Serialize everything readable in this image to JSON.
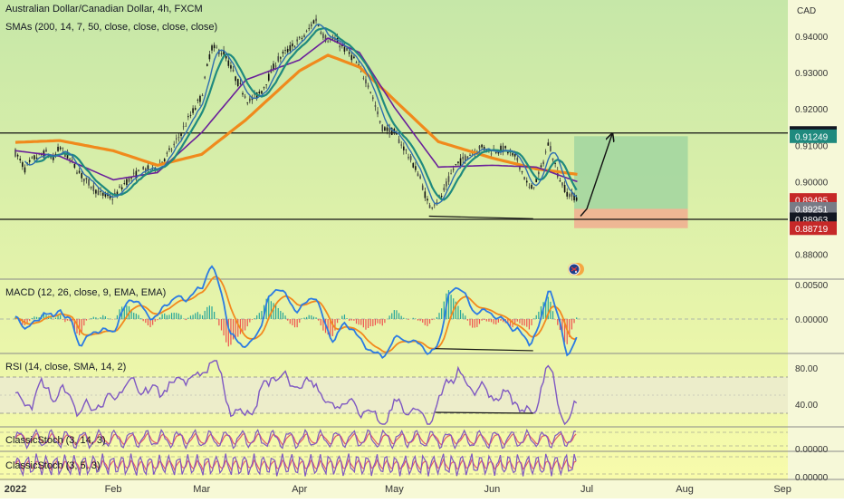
{
  "header": {
    "symbol": "Australian Dollar/Canadian Dollar, 4h, FXCM",
    "sma_label": "SMAs (200, 14, 7, 50, close, close, close, close)",
    "currency": "CAD"
  },
  "colors": {
    "bg_top": "#c6e7a8",
    "bg_bottom": "#fafcab",
    "sma200": "#f08a1c",
    "sma50": "#6a1f9a",
    "sma14": "#1f8a7e",
    "sma7": "#2f6fb0",
    "candle": "#222222",
    "macd_line": "#2b7be3",
    "macd_signal": "#f2891e",
    "hist_pos": "#26a69a",
    "hist_neg": "#ef5350",
    "rsi": "#7e57c2",
    "stoch_k": "#7e57c2",
    "stoch_d": "#e05a6b",
    "price_tag_black": "#131722",
    "price_tag_teal": "#1f8a7e",
    "price_tag_red": "#c62828",
    "price_tag_gray": "#787b86",
    "target_zone": "#9ad19f",
    "stop_zone": "#f2a98f"
  },
  "chart_data": [
    {
      "type": "line",
      "title": "Australian Dollar/Canadian Dollar, 4h, FXCM",
      "ylabel": "CAD",
      "y_axis_ticks": [
        0.94,
        0.93,
        0.92,
        0.91,
        0.9,
        0.89,
        0.88
      ],
      "y_axis_tick_labels": [
        "0.94000",
        "0.93000",
        "0.92000",
        "0.91000",
        "0.90000",
        "0.89000",
        "0.88000"
      ],
      "ylim": [
        0.8745,
        0.9475
      ],
      "x_ticks": [
        "2022",
        "Feb",
        "Mar",
        "Apr",
        "May",
        "Jun",
        "Jul",
        "Aug",
        "Sep"
      ],
      "price_labels": [
        {
          "value": 0.91338,
          "text": "0.91338",
          "style": "black"
        },
        {
          "value": 0.91249,
          "text": "0.91249",
          "style": "teal"
        },
        {
          "value": 0.89495,
          "text": "0.89495",
          "style": "red"
        },
        {
          "value": 0.89251,
          "text": "0.89251",
          "style": "gray"
        },
        {
          "value": 0.88963,
          "text": "0.88963",
          "style": "black"
        },
        {
          "value": 0.88719,
          "text": "0.88719",
          "style": "red"
        }
      ],
      "horizontal_levels": [
        0.91338,
        0.88963
      ],
      "close_series": [
        {
          "x": "2022-01-01",
          "y": 0.908
        },
        {
          "x": "2022-01-04",
          "y": 0.9035
        },
        {
          "x": "2022-01-07",
          "y": 0.9065
        },
        {
          "x": "2022-01-11",
          "y": 0.908
        },
        {
          "x": "2022-01-13",
          "y": 0.906
        },
        {
          "x": "2022-01-15",
          "y": 0.9095
        },
        {
          "x": "2022-01-18",
          "y": 0.9065
        },
        {
          "x": "2022-01-22",
          "y": 0.9015
        },
        {
          "x": "2022-01-28",
          "y": 0.8965
        },
        {
          "x": "2022-02-01",
          "y": 0.8955
        },
        {
          "x": "2022-02-05",
          "y": 0.9
        },
        {
          "x": "2022-02-10",
          "y": 0.903
        },
        {
          "x": "2022-02-15",
          "y": 0.904
        },
        {
          "x": "2022-02-20",
          "y": 0.9095
        },
        {
          "x": "2022-02-25",
          "y": 0.9175
        },
        {
          "x": "2022-03-01",
          "y": 0.9235
        },
        {
          "x": "2022-03-04",
          "y": 0.937
        },
        {
          "x": "2022-03-08",
          "y": 0.9355
        },
        {
          "x": "2022-03-12",
          "y": 0.928
        },
        {
          "x": "2022-03-16",
          "y": 0.922
        },
        {
          "x": "2022-03-20",
          "y": 0.925
        },
        {
          "x": "2022-03-25",
          "y": 0.9335
        },
        {
          "x": "2022-03-30",
          "y": 0.9375
        },
        {
          "x": "2022-04-03",
          "y": 0.9405
        },
        {
          "x": "2022-04-06",
          "y": 0.945
        },
        {
          "x": "2022-04-09",
          "y": 0.9395
        },
        {
          "x": "2022-04-13",
          "y": 0.9385
        },
        {
          "x": "2022-04-18",
          "y": 0.934
        },
        {
          "x": "2022-04-23",
          "y": 0.9265
        },
        {
          "x": "2022-04-27",
          "y": 0.915
        },
        {
          "x": "2022-05-01",
          "y": 0.9135
        },
        {
          "x": "2022-05-05",
          "y": 0.908
        },
        {
          "x": "2022-05-09",
          "y": 0.9015
        },
        {
          "x": "2022-05-12",
          "y": 0.893
        },
        {
          "x": "2022-05-16",
          "y": 0.896
        },
        {
          "x": "2022-05-20",
          "y": 0.904
        },
        {
          "x": "2022-05-24",
          "y": 0.907
        },
        {
          "x": "2022-05-28",
          "y": 0.9095
        },
        {
          "x": "2022-06-01",
          "y": 0.9085
        },
        {
          "x": "2022-06-05",
          "y": 0.909
        },
        {
          "x": "2022-06-09",
          "y": 0.906
        },
        {
          "x": "2022-06-13",
          "y": 0.8975
        },
        {
          "x": "2022-06-16",
          "y": 0.902
        },
        {
          "x": "2022-06-19",
          "y": 0.911
        },
        {
          "x": "2022-06-22",
          "y": 0.9015
        },
        {
          "x": "2022-06-25",
          "y": 0.8965
        },
        {
          "x": "2022-06-28",
          "y": 0.8955
        }
      ],
      "sma200_series": [
        {
          "x": "2022-01-01",
          "y": 0.9108
        },
        {
          "x": "2022-01-15",
          "y": 0.9113
        },
        {
          "x": "2022-02-01",
          "y": 0.9085
        },
        {
          "x": "2022-02-15",
          "y": 0.9045
        },
        {
          "x": "2022-03-01",
          "y": 0.9075
        },
        {
          "x": "2022-03-15",
          "y": 0.917
        },
        {
          "x": "2022-04-01",
          "y": 0.9305
        },
        {
          "x": "2022-04-10",
          "y": 0.9348
        },
        {
          "x": "2022-04-20",
          "y": 0.9315
        },
        {
          "x": "2022-05-01",
          "y": 0.9225
        },
        {
          "x": "2022-05-15",
          "y": 0.911
        },
        {
          "x": "2022-06-01",
          "y": 0.9065
        },
        {
          "x": "2022-06-15",
          "y": 0.9035
        },
        {
          "x": "2022-06-28",
          "y": 0.902
        }
      ],
      "sma50_series": [
        {
          "x": "2022-01-01",
          "y": 0.9085
        },
        {
          "x": "2022-01-15",
          "y": 0.907
        },
        {
          "x": "2022-02-01",
          "y": 0.9005
        },
        {
          "x": "2022-02-15",
          "y": 0.9025
        },
        {
          "x": "2022-03-01",
          "y": 0.9135
        },
        {
          "x": "2022-03-15",
          "y": 0.928
        },
        {
          "x": "2022-04-01",
          "y": 0.9335
        },
        {
          "x": "2022-04-10",
          "y": 0.9395
        },
        {
          "x": "2022-04-20",
          "y": 0.9355
        },
        {
          "x": "2022-05-01",
          "y": 0.9205
        },
        {
          "x": "2022-05-15",
          "y": 0.904
        },
        {
          "x": "2022-06-01",
          "y": 0.9045
        },
        {
          "x": "2022-06-15",
          "y": 0.904
        },
        {
          "x": "2022-06-28",
          "y": 0.9
        }
      ],
      "annotations": [
        {
          "type": "trendline",
          "from": {
            "x": "2022-05-12",
            "y": 0.8905
          },
          "to": {
            "x": "2022-06-14",
            "y": 0.8898
          }
        },
        {
          "type": "arrow",
          "from": {
            "x": "2022-06-29",
            "y": 0.8905
          },
          "via": {
            "x": "2022-07-01",
            "y": 0.8925
          },
          "to": {
            "x": "2022-07-09",
            "y": 0.913
          }
        },
        {
          "type": "target_zone",
          "top": 0.91249,
          "bottom": 0.89251,
          "x_from": "2022-06-27",
          "x_to": "2022-08-02"
        },
        {
          "type": "stop_zone",
          "top": 0.89251,
          "bottom": 0.88719,
          "x_from": "2022-06-27",
          "x_to": "2022-08-02"
        }
      ]
    },
    {
      "type": "line",
      "title": "MACD (12, 26, close, 9, EMA, EMA)",
      "y_axis_ticks": [
        0.005,
        0.0
      ],
      "y_axis_tick_labels": [
        "0.00500",
        "0.00000"
      ],
      "ylim": [
        -0.0065,
        0.0062
      ],
      "annotations": [
        {
          "type": "trendline",
          "from": {
            "x": "2022-05-14",
            "y": -0.0043
          },
          "to": {
            "x": "2022-06-14",
            "y": -0.0046
          }
        }
      ]
    },
    {
      "type": "line",
      "title": "RSI (14, close, SMA, 14, 2)",
      "y_axis_ticks": [
        80,
        40
      ],
      "y_axis_tick_labels": [
        "80.00",
        "40.00"
      ],
      "ylim": [
        15,
        95
      ],
      "bands": [
        70,
        50,
        30
      ],
      "annotations": [
        {
          "type": "trendline",
          "from": {
            "x": "2022-05-14",
            "y": 31
          },
          "to": {
            "x": "2022-06-14",
            "y": 30
          }
        }
      ]
    },
    {
      "type": "line",
      "title": "ClassicStoch (3, 14, 3)",
      "y_axis_ticks": [
        0
      ],
      "y_axis_tick_labels": [
        "0.00000"
      ],
      "bands": [
        80,
        20
      ]
    },
    {
      "type": "line",
      "title": "ClassicStoch (3, 5, 3)",
      "y_axis_ticks": [
        0
      ],
      "y_axis_tick_labels": [
        "0.00000"
      ],
      "bands": [
        80,
        20
      ]
    }
  ]
}
